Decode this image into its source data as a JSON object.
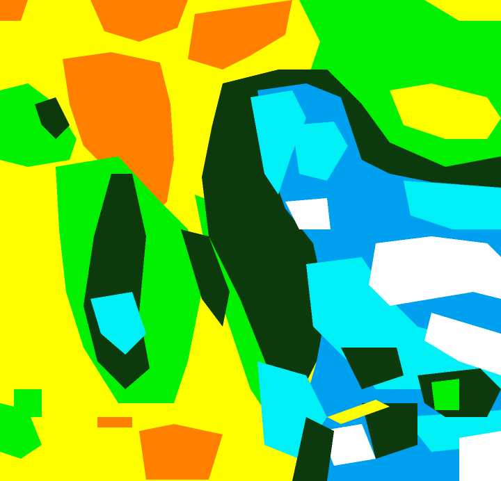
{
  "map": {
    "type": "classified-raster",
    "classes": [
      {
        "id": "yellow",
        "color": "#ffff00"
      },
      {
        "id": "orange",
        "color": "#ff8000"
      },
      {
        "id": "green",
        "color": "#00f000"
      },
      {
        "id": "dark-green",
        "color": "#0c3a0c"
      },
      {
        "id": "cyan",
        "color": "#00f0f8"
      },
      {
        "id": "blue",
        "color": "#00a0f0"
      },
      {
        "id": "white",
        "color": "#ffffff"
      }
    ]
  }
}
